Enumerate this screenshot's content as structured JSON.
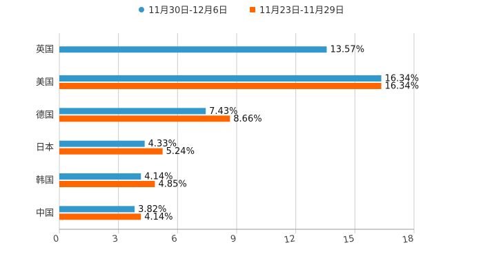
{
  "chart_data": {
    "type": "bar",
    "orientation": "horizontal",
    "title": "",
    "xlabel": "",
    "ylabel": "",
    "categories": [
      "英国",
      "美国",
      "德国",
      "日本",
      "韩国",
      "中国"
    ],
    "series": [
      {
        "name": "11月30日-12月6日",
        "color": "#3399cc",
        "marker": "circle",
        "values": [
          13.57,
          16.34,
          7.43,
          4.33,
          4.14,
          3.82
        ],
        "labels": [
          "13.57%",
          "16.34%",
          "7.43%",
          "4.33%",
          "4.14%",
          "3.82%"
        ]
      },
      {
        "name": "11月23日-11月29日",
        "color": "#ff6600",
        "marker": "square",
        "values": [
          null,
          16.34,
          8.66,
          5.24,
          4.85,
          4.14
        ],
        "labels": [
          null,
          "16.34%",
          "8.66%",
          "5.24%",
          "4.85%",
          "4.14%"
        ]
      }
    ],
    "xlim": [
      0,
      18
    ],
    "xticks": [
      "0",
      "3",
      "6",
      "9",
      "12",
      "15",
      "18"
    ],
    "grid": true,
    "legend": "top-center"
  }
}
